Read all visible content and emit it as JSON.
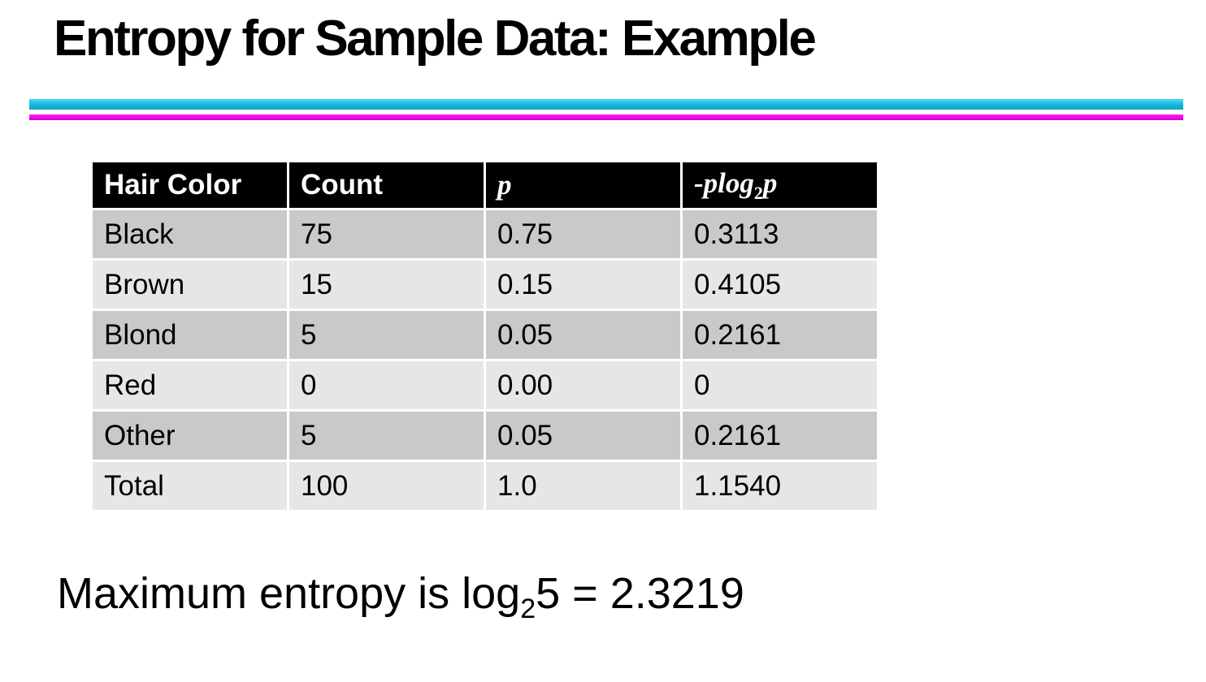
{
  "header": {
    "title": "Entropy for Sample Data: Example"
  },
  "table": {
    "columns": [
      "Hair Color",
      "Count",
      "p",
      {
        "parts": [
          "-plog",
          "2",
          "p"
        ]
      }
    ],
    "rows": [
      [
        "Black",
        "75",
        "0.75",
        "0.3113"
      ],
      [
        "Brown",
        "15",
        "0.15",
        "0.4105"
      ],
      [
        "Blond",
        "5",
        "0.05",
        "0.2161"
      ],
      [
        "Red",
        "0",
        "0.00",
        "0"
      ],
      [
        "Other",
        "5",
        "0.05",
        "0.2161"
      ],
      [
        "Total",
        "100",
        "1.0",
        "1.1540"
      ]
    ]
  },
  "footer": {
    "parts": [
      "Maximum entropy is log",
      "2",
      "5 = 2.3219"
    ]
  }
}
